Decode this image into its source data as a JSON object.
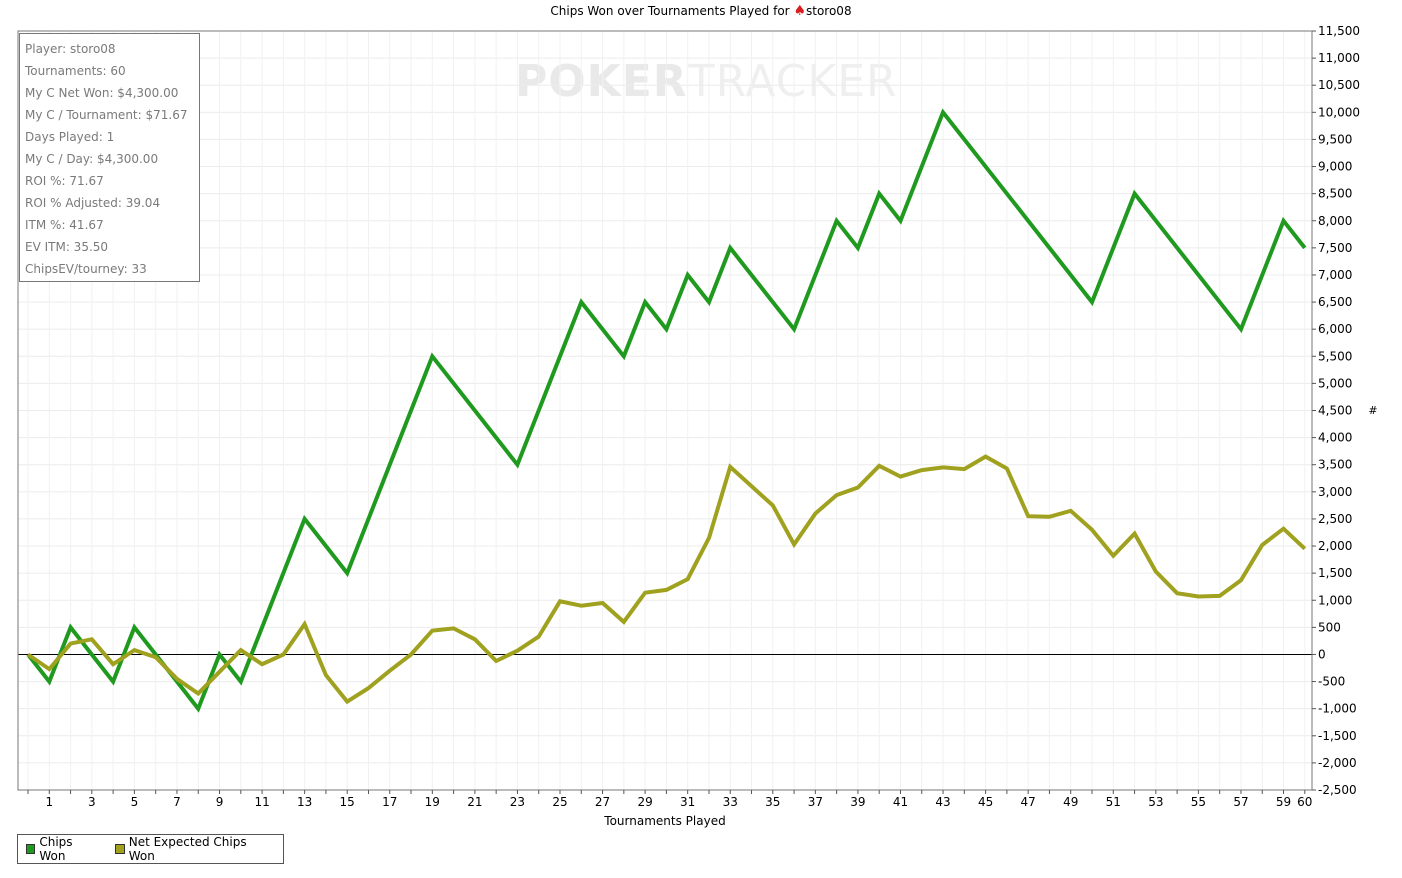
{
  "title": {
    "prefix": "Chips Won over Tournaments Played for",
    "player": "storo08"
  },
  "watermark": {
    "part1": "POKER",
    "part2": "TRACKER"
  },
  "stats": [
    "Player: storo08",
    "Tournaments: 60",
    "My C Net Won: $4,300.00",
    "My C / Tournament: $71.67",
    "Days Played: 1",
    "My C / Day: $4,300.00",
    "ROI %: 71.67",
    "ROI % Adjusted: 39.04",
    "ITM %: 41.67",
    "EV ITM: 35.50",
    "ChipsEV/tourney: 33"
  ],
  "legend": [
    {
      "label": "Chips Won",
      "color": "#1f9a1f"
    },
    {
      "label": "Net Expected Chips Won",
      "color": "#9fa11f"
    }
  ],
  "chart_data": {
    "type": "line",
    "title": "Chips Won over Tournaments Played for storo08",
    "xlabel": "Tournaments Played",
    "ylabel": "#",
    "xlim": [
      0,
      60
    ],
    "ylim": [
      -2500,
      11500
    ],
    "xticks": [
      1,
      3,
      5,
      7,
      9,
      11,
      13,
      15,
      17,
      19,
      21,
      23,
      25,
      27,
      29,
      31,
      33,
      35,
      37,
      39,
      41,
      43,
      45,
      47,
      49,
      51,
      53,
      55,
      57,
      59,
      60
    ],
    "yticks": [
      -2500,
      -2000,
      -1500,
      -1000,
      -500,
      0,
      500,
      1000,
      1500,
      2000,
      2500,
      3000,
      3500,
      4000,
      4500,
      5000,
      5500,
      6000,
      6500,
      7000,
      7500,
      8000,
      8500,
      9000,
      9500,
      10000,
      10500,
      11000,
      11500
    ],
    "ytick_labels": [
      "-2,500",
      "-2,000",
      "-1,500",
      "-1,000",
      "-500",
      "0",
      "500",
      "1,000",
      "1,500",
      "2,000",
      "2,500",
      "3,000",
      "3,500",
      "4,000",
      "4,500",
      "5,000",
      "5,500",
      "6,000",
      "6,500",
      "7,000",
      "7,500",
      "8,000",
      "8,500",
      "9,000",
      "9,500",
      "10,000",
      "10,500",
      "11,000",
      "11,500"
    ],
    "grid": true,
    "legend_position": "bottom-left",
    "series": [
      {
        "name": "Chips Won",
        "color": "#1f9a1f",
        "points": [
          [
            0,
            0
          ],
          [
            1,
            -500
          ],
          [
            2,
            500
          ],
          [
            3,
            0
          ],
          [
            4,
            -500
          ],
          [
            5,
            500
          ],
          [
            6,
            0
          ],
          [
            7,
            -500
          ],
          [
            8,
            -1000
          ],
          [
            9,
            0
          ],
          [
            10,
            -500
          ],
          [
            13,
            2500
          ],
          [
            15,
            1500
          ],
          [
            19,
            5500
          ],
          [
            23,
            3500
          ],
          [
            26,
            6500
          ],
          [
            28,
            5500
          ],
          [
            29,
            6500
          ],
          [
            30,
            6000
          ],
          [
            31,
            7000
          ],
          [
            32,
            6500
          ],
          [
            33,
            7500
          ],
          [
            36,
            6000
          ],
          [
            38,
            8000
          ],
          [
            39,
            7500
          ],
          [
            40,
            8500
          ],
          [
            41,
            8000
          ],
          [
            43,
            10000
          ],
          [
            50,
            6500
          ],
          [
            52,
            8500
          ],
          [
            57,
            6000
          ],
          [
            59,
            8000
          ],
          [
            60,
            7500
          ]
        ]
      },
      {
        "name": "Net Expected Chips Won",
        "color": "#9fa11f",
        "points": [
          [
            0,
            0
          ],
          [
            1,
            -270
          ],
          [
            2,
            200
          ],
          [
            3,
            280
          ],
          [
            4,
            -180
          ],
          [
            5,
            80
          ],
          [
            6,
            -50
          ],
          [
            7,
            -450
          ],
          [
            8,
            -720
          ],
          [
            9,
            -320
          ],
          [
            10,
            80
          ],
          [
            11,
            -180
          ],
          [
            12,
            0
          ],
          [
            13,
            560
          ],
          [
            14,
            -380
          ],
          [
            15,
            -870
          ],
          [
            16,
            -620
          ],
          [
            17,
            -300
          ],
          [
            18,
            0
          ],
          [
            19,
            440
          ],
          [
            20,
            480
          ],
          [
            21,
            280
          ],
          [
            22,
            -120
          ],
          [
            23,
            70
          ],
          [
            24,
            330
          ],
          [
            25,
            980
          ],
          [
            26,
            900
          ],
          [
            27,
            950
          ],
          [
            28,
            600
          ],
          [
            29,
            1140
          ],
          [
            30,
            1190
          ],
          [
            31,
            1390
          ],
          [
            32,
            2150
          ],
          [
            33,
            3460
          ],
          [
            35,
            2750
          ],
          [
            36,
            2030
          ],
          [
            37,
            2600
          ],
          [
            38,
            2940
          ],
          [
            39,
            3080
          ],
          [
            40,
            3480
          ],
          [
            41,
            3280
          ],
          [
            42,
            3400
          ],
          [
            43,
            3450
          ],
          [
            44,
            3420
          ],
          [
            45,
            3650
          ],
          [
            46,
            3430
          ],
          [
            47,
            2550
          ],
          [
            48,
            2540
          ],
          [
            49,
            2650
          ],
          [
            50,
            2300
          ],
          [
            51,
            1820
          ],
          [
            52,
            2230
          ],
          [
            53,
            1530
          ],
          [
            54,
            1130
          ],
          [
            55,
            1070
          ],
          [
            56,
            1080
          ],
          [
            57,
            1370
          ],
          [
            58,
            2020
          ],
          [
            59,
            2320
          ],
          [
            60,
            1950
          ]
        ]
      }
    ]
  }
}
